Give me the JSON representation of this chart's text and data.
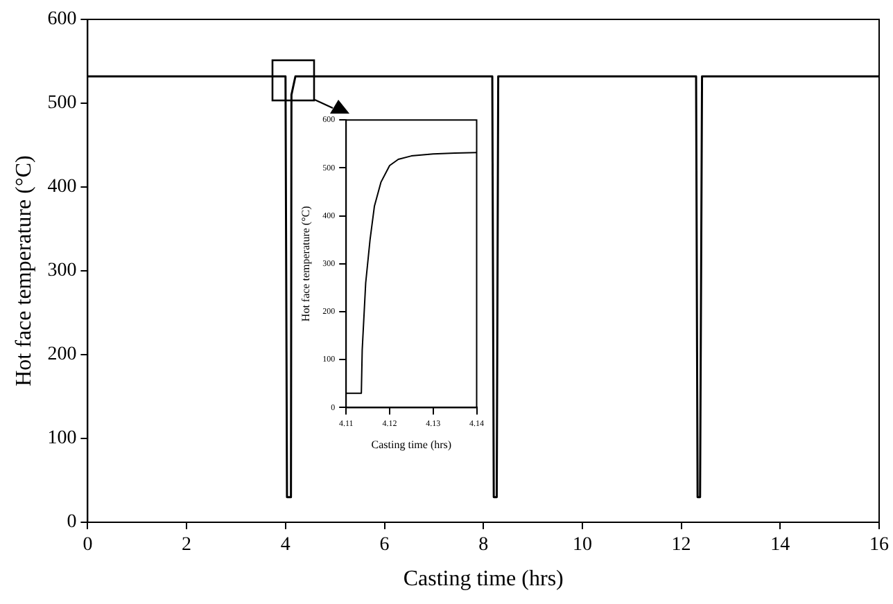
{
  "chart_data": [
    {
      "type": "line",
      "xlabel": "Casting time (hrs)",
      "ylabel": "Hot face temperature (°C)",
      "xlim": [
        0,
        16
      ],
      "xticks": [
        0,
        2,
        4,
        6,
        8,
        10,
        12,
        14,
        16
      ],
      "ylim": [
        0,
        600
      ],
      "yticks": [
        0,
        100,
        200,
        300,
        400,
        500,
        600
      ],
      "grid": false,
      "legend": false,
      "series": [
        {
          "color": "#000000",
          "x": [
            0,
            4.0,
            4.03,
            4.11,
            4.12,
            4.2,
            8.18,
            8.21,
            8.27,
            8.3,
            12.3,
            12.33,
            12.38,
            12.42,
            16
          ],
          "values": [
            532,
            532,
            30,
            30,
            510,
            532,
            532,
            30,
            30,
            532,
            532,
            30,
            30,
            532,
            532
          ]
        }
      ]
    },
    {
      "type": "line",
      "xlabel": "Casting time (hrs)",
      "ylabel": "Hot face temperature (°C)",
      "xlim": [
        4.11,
        4.14
      ],
      "xticks": [
        4.11,
        4.12,
        4.13,
        4.14
      ],
      "ylim": [
        0,
        600
      ],
      "yticks": [
        0,
        100,
        200,
        300,
        400,
        500,
        600
      ],
      "grid": false,
      "legend": false,
      "series": [
        {
          "color": "#000000",
          "x": [
            4.11,
            4.1135,
            4.1137,
            4.1145,
            4.1155,
            4.1165,
            4.118,
            4.12,
            4.122,
            4.125,
            4.13,
            4.135,
            4.14
          ],
          "values": [
            30,
            30,
            120,
            260,
            350,
            420,
            470,
            505,
            518,
            525,
            529,
            531,
            532
          ]
        }
      ]
    }
  ]
}
